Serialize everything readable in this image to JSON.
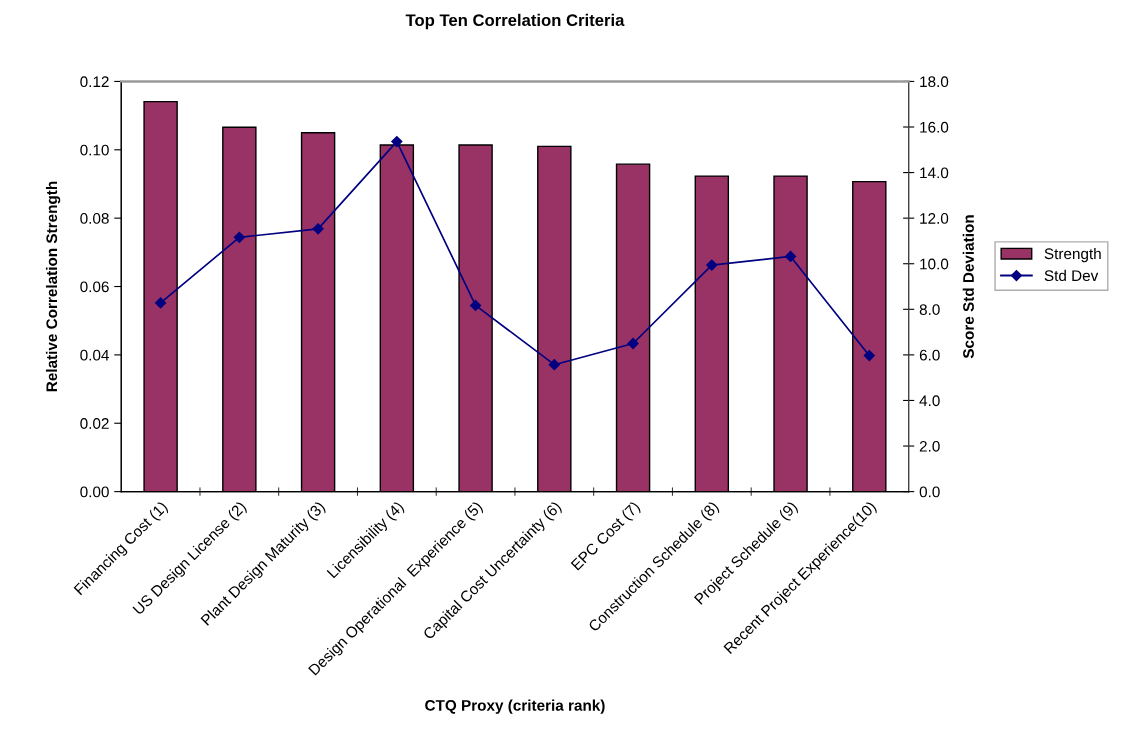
{
  "chart_data": {
    "type": "bar",
    "title": "Top Ten Correlation Criteria",
    "xlabel": "CTQ Proxy (criteria rank)",
    "ylabel": "Relative Correlation Strength",
    "y2label": "Score Std Deviation",
    "categories": [
      "Financing Cost (1)",
      "US Design License (2)",
      "Plant Design Maturity (3)",
      "Licensibility (4)",
      "Design Operational  Experience (5)",
      "Capital Cost Uncertainty (6)",
      "EPC Cost (7)",
      "Construction Schedule (8)",
      "Project Schedule (9)",
      "Recent Project Experience(10)"
    ],
    "series": [
      {
        "name": "Strength",
        "color": "#993366",
        "values": [
          0.1141,
          0.1066,
          0.105,
          0.1014,
          0.1014,
          0.101,
          0.0958,
          0.0923,
          0.0923,
          0.0907
        ]
      },
      {
        "name": "Std Dev",
        "type": "line",
        "axis": "y2",
        "color": "#000080",
        "marker": "diamond",
        "values": [
          8.28,
          11.16,
          11.53,
          15.36,
          8.17,
          5.57,
          6.5,
          9.94,
          10.32,
          5.97
        ]
      }
    ],
    "ylim": [
      0,
      0.12
    ],
    "yticks": [
      {
        "value": 0,
        "label": "0.00"
      },
      {
        "value": 0.02,
        "label": "0.02"
      },
      {
        "value": 0.04,
        "label": "0.04"
      },
      {
        "value": 0.06,
        "label": "0.06"
      },
      {
        "value": 0.08,
        "label": "0.08"
      },
      {
        "value": 0.1,
        "label": "0.10"
      },
      {
        "value": 0.12,
        "label": "0.12"
      }
    ],
    "y2lim": [
      0,
      18
    ],
    "y2ticks": [
      {
        "value": 0,
        "label": "0.0"
      },
      {
        "value": 2,
        "label": "2.0"
      },
      {
        "value": 4,
        "label": "4.0"
      },
      {
        "value": 6,
        "label": "6.0"
      },
      {
        "value": 8,
        "label": "8.0"
      },
      {
        "value": 10,
        "label": "10.0"
      },
      {
        "value": 12,
        "label": "12.0"
      },
      {
        "value": 14,
        "label": "14.0"
      },
      {
        "value": 16,
        "label": "16.0"
      },
      {
        "value": 18,
        "label": "18.0"
      }
    ],
    "grid": false,
    "legend": "right"
  }
}
